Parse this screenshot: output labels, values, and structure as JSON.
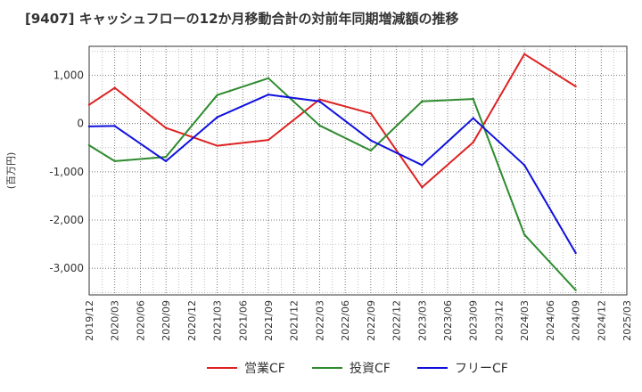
{
  "chart_data": {
    "type": "line",
    "title": "[9407]  キャッシュフローの12か月移動合計の対前年同期増減額の推移",
    "ylabel": "(百万円)",
    "xlabel": "",
    "ylim": [
      -3550,
      1600
    ],
    "yticks": [
      1000,
      0,
      -1000,
      -2000,
      -3000
    ],
    "ytick_labels": [
      "1,000",
      "0",
      "-1,000",
      "-2,000",
      "-3,000"
    ],
    "x": [
      "2019/12",
      "2020/03",
      "2020/06",
      "2020/09",
      "2020/12",
      "2021/03",
      "2021/06",
      "2021/09",
      "2021/12",
      "2022/03",
      "2022/06",
      "2022/09",
      "2022/12",
      "2023/03",
      "2023/06",
      "2023/09",
      "2023/12",
      "2024/03",
      "2024/06",
      "2024/09",
      "2024/12",
      "2025/03"
    ],
    "grid": true,
    "legend_position": "bottom",
    "series": [
      {
        "name": "営業CF",
        "color": "#dd2222",
        "values": [
          390,
          740,
          null,
          -90,
          null,
          -460,
          null,
          -340,
          null,
          500,
          null,
          210,
          null,
          -1320,
          null,
          -390,
          null,
          1440,
          null,
          770,
          null,
          null
        ]
      },
      {
        "name": "投資CF",
        "color": "#2e8b2e",
        "values": [
          -450,
          -780,
          null,
          -690,
          null,
          590,
          null,
          940,
          null,
          -40,
          null,
          -560,
          null,
          460,
          null,
          510,
          null,
          -2300,
          null,
          -3450,
          null,
          null
        ]
      },
      {
        "name": "フリーCF",
        "color": "#1010dd",
        "values": [
          -60,
          -50,
          null,
          -780,
          null,
          130,
          null,
          600,
          null,
          460,
          null,
          -350,
          null,
          -860,
          null,
          110,
          null,
          -860,
          null,
          -2680,
          null,
          null
        ]
      }
    ]
  }
}
